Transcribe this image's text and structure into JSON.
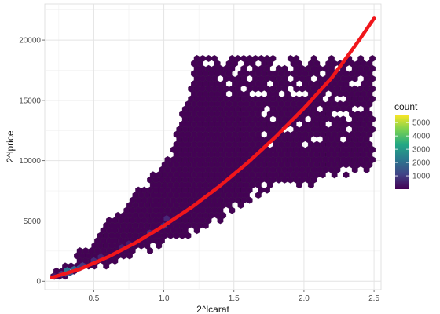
{
  "chart_data": {
    "type": "hexbin",
    "xlabel": "2^lcarat",
    "ylabel": "2^lprice",
    "xlim": [
      0.15,
      2.55
    ],
    "ylim": [
      -700,
      23000
    ],
    "x_ticks": [
      0.5,
      1.0,
      1.5,
      2.0,
      2.5
    ],
    "x_tick_labels": [
      "0.5",
      "1.0",
      "1.5",
      "2.0",
      "2.5"
    ],
    "y_ticks": [
      0,
      5000,
      10000,
      15000,
      20000
    ],
    "y_tick_labels": [
      "0",
      "5000",
      "10000",
      "15000",
      "20000"
    ],
    "grid": true,
    "legend": {
      "title": "count",
      "position": "right",
      "breaks": [
        1000,
        2000,
        3000,
        4000,
        5000
      ],
      "labels": [
        "1000",
        "2000",
        "3000",
        "4000",
        "5000"
      ],
      "range": [
        1,
        5600
      ],
      "colormap": "viridis"
    },
    "fit_curve": {
      "color": "#f0161b",
      "x": [
        0.2,
        0.4,
        0.6,
        0.8,
        1.0,
        1.2,
        1.4,
        1.6,
        1.8,
        2.0,
        2.2,
        2.4,
        2.5
      ],
      "y": [
        300,
        1000,
        2000,
        3200,
        4600,
        6150,
        7900,
        9850,
        12000,
        14350,
        16900,
        20100,
        21800
      ]
    },
    "hex_bins": [
      {
        "x": 0.22,
        "y": 400,
        "count": 350
      },
      {
        "x": 0.27,
        "y": 600,
        "count": 900
      },
      {
        "x": 0.3,
        "y": 650,
        "count": 1600
      },
      {
        "x": 0.31,
        "y": 900,
        "count": 2200
      },
      {
        "x": 0.33,
        "y": 700,
        "count": 1400
      },
      {
        "x": 0.36,
        "y": 1000,
        "count": 1800
      },
      {
        "x": 0.4,
        "y": 1100,
        "count": 1300
      },
      {
        "x": 0.42,
        "y": 1300,
        "count": 900
      },
      {
        "x": 0.5,
        "y": 1700,
        "count": 700
      },
      {
        "x": 0.55,
        "y": 2000,
        "count": 500
      },
      {
        "x": 0.7,
        "y": 2800,
        "count": 450
      },
      {
        "x": 0.75,
        "y": 3100,
        "count": 400
      },
      {
        "x": 0.9,
        "y": 4000,
        "count": 650
      },
      {
        "x": 1.0,
        "y": 4600,
        "count": 800
      },
      {
        "x": 1.02,
        "y": 5200,
        "count": 600
      }
    ]
  }
}
